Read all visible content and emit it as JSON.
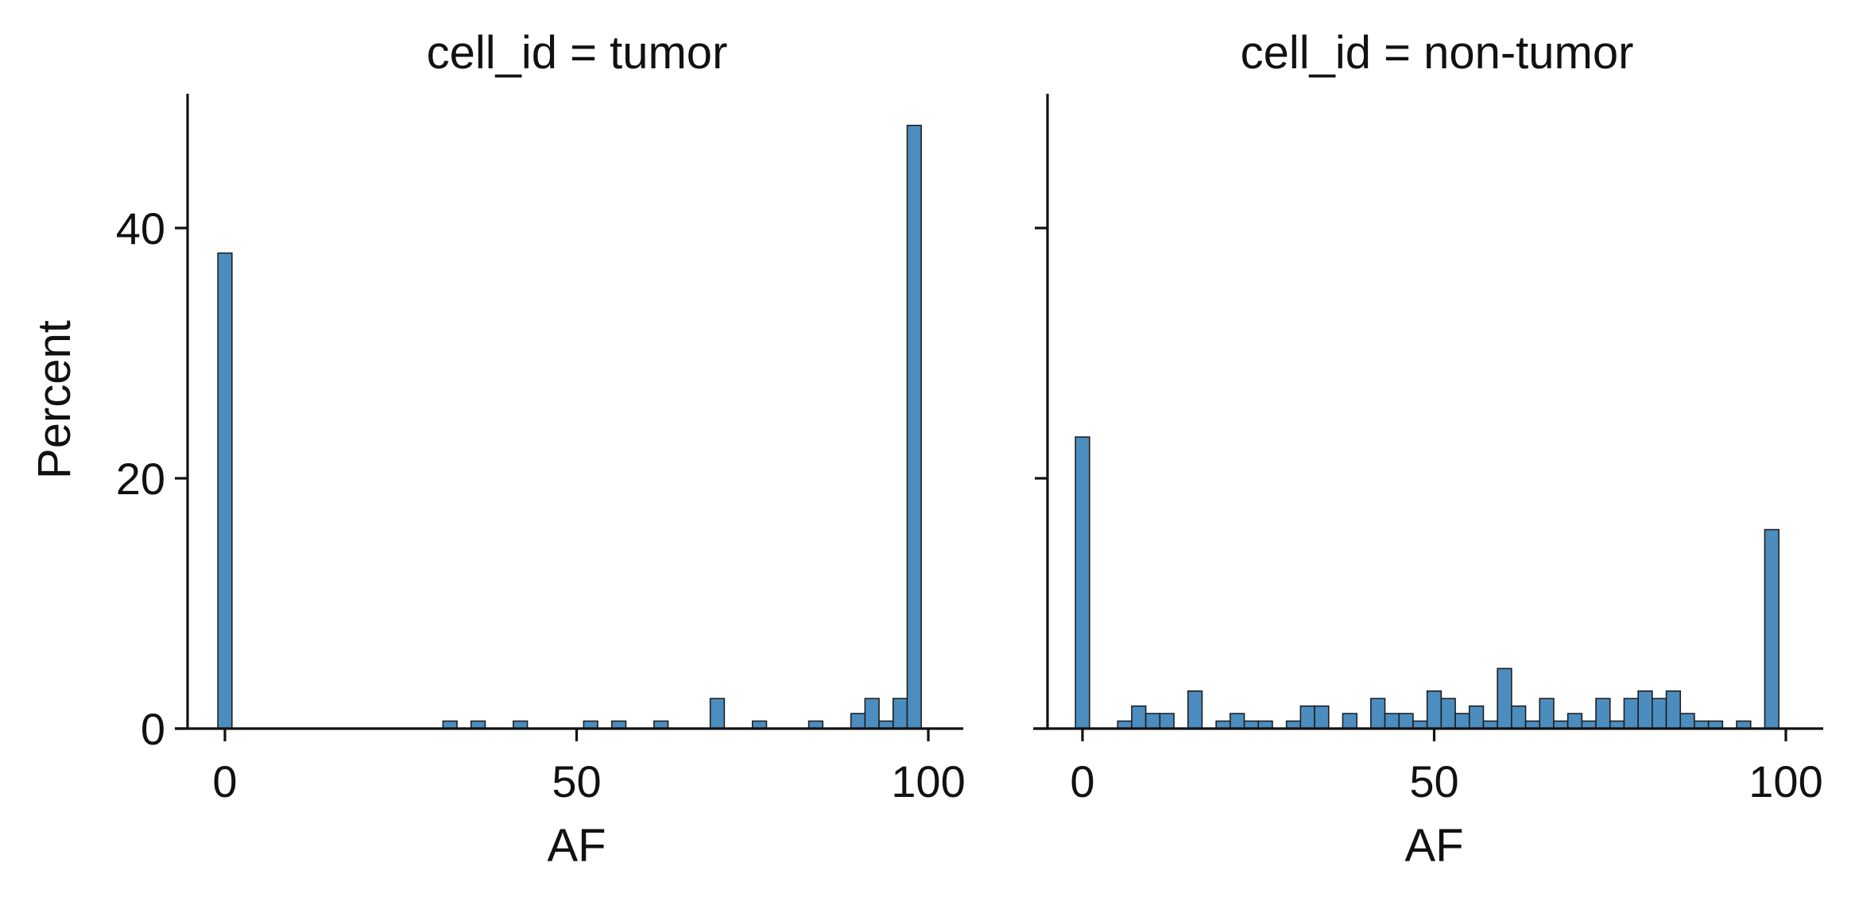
{
  "chart_data": {
    "type": "bar",
    "kind": "faceted histogram",
    "bar_color": "#4C8DC0",
    "edge_color": "#1F1F1F",
    "bin_width": 2,
    "ylim": [
      0,
      50
    ],
    "xlim": [
      -5,
      105
    ],
    "ylabel": "Percent",
    "yticks": [
      0,
      20,
      40
    ],
    "xticks": [
      0,
      50,
      100
    ],
    "grid": false,
    "legend": "none",
    "panels": [
      {
        "title": "cell_id = tumor",
        "xlabel": "AF",
        "bins": [
          {
            "x": 0,
            "y": 38.0
          },
          {
            "x": 32,
            "y": 0.6
          },
          {
            "x": 36,
            "y": 0.6
          },
          {
            "x": 42,
            "y": 0.6
          },
          {
            "x": 52,
            "y": 0.6
          },
          {
            "x": 56,
            "y": 0.6
          },
          {
            "x": 62,
            "y": 0.6
          },
          {
            "x": 70,
            "y": 2.4
          },
          {
            "x": 76,
            "y": 0.6
          },
          {
            "x": 84,
            "y": 0.6
          },
          {
            "x": 90,
            "y": 1.2
          },
          {
            "x": 92,
            "y": 2.4
          },
          {
            "x": 94,
            "y": 0.6
          },
          {
            "x": 96,
            "y": 2.4
          },
          {
            "x": 98,
            "y": 48.2
          }
        ]
      },
      {
        "title": "cell_id = non-tumor",
        "xlabel": "AF",
        "bins": [
          {
            "x": 0,
            "y": 23.3
          },
          {
            "x": 6,
            "y": 0.6
          },
          {
            "x": 8,
            "y": 1.8
          },
          {
            "x": 10,
            "y": 1.2
          },
          {
            "x": 12,
            "y": 1.2
          },
          {
            "x": 16,
            "y": 3.0
          },
          {
            "x": 20,
            "y": 0.6
          },
          {
            "x": 22,
            "y": 1.2
          },
          {
            "x": 24,
            "y": 0.6
          },
          {
            "x": 26,
            "y": 0.6
          },
          {
            "x": 30,
            "y": 0.6
          },
          {
            "x": 32,
            "y": 1.8
          },
          {
            "x": 34,
            "y": 1.8
          },
          {
            "x": 38,
            "y": 1.2
          },
          {
            "x": 42,
            "y": 2.4
          },
          {
            "x": 44,
            "y": 1.2
          },
          {
            "x": 46,
            "y": 1.2
          },
          {
            "x": 48,
            "y": 0.6
          },
          {
            "x": 50,
            "y": 3.0
          },
          {
            "x": 52,
            "y": 2.4
          },
          {
            "x": 54,
            "y": 1.2
          },
          {
            "x": 56,
            "y": 1.8
          },
          {
            "x": 58,
            "y": 0.6
          },
          {
            "x": 60,
            "y": 4.8
          },
          {
            "x": 62,
            "y": 1.8
          },
          {
            "x": 64,
            "y": 0.6
          },
          {
            "x": 66,
            "y": 2.4
          },
          {
            "x": 68,
            "y": 0.6
          },
          {
            "x": 70,
            "y": 1.2
          },
          {
            "x": 72,
            "y": 0.6
          },
          {
            "x": 74,
            "y": 2.4
          },
          {
            "x": 76,
            "y": 0.6
          },
          {
            "x": 78,
            "y": 2.4
          },
          {
            "x": 80,
            "y": 3.0
          },
          {
            "x": 82,
            "y": 2.4
          },
          {
            "x": 84,
            "y": 3.0
          },
          {
            "x": 86,
            "y": 1.2
          },
          {
            "x": 88,
            "y": 0.6
          },
          {
            "x": 90,
            "y": 0.6
          },
          {
            "x": 94,
            "y": 0.6
          },
          {
            "x": 98,
            "y": 15.9
          }
        ]
      }
    ]
  }
}
